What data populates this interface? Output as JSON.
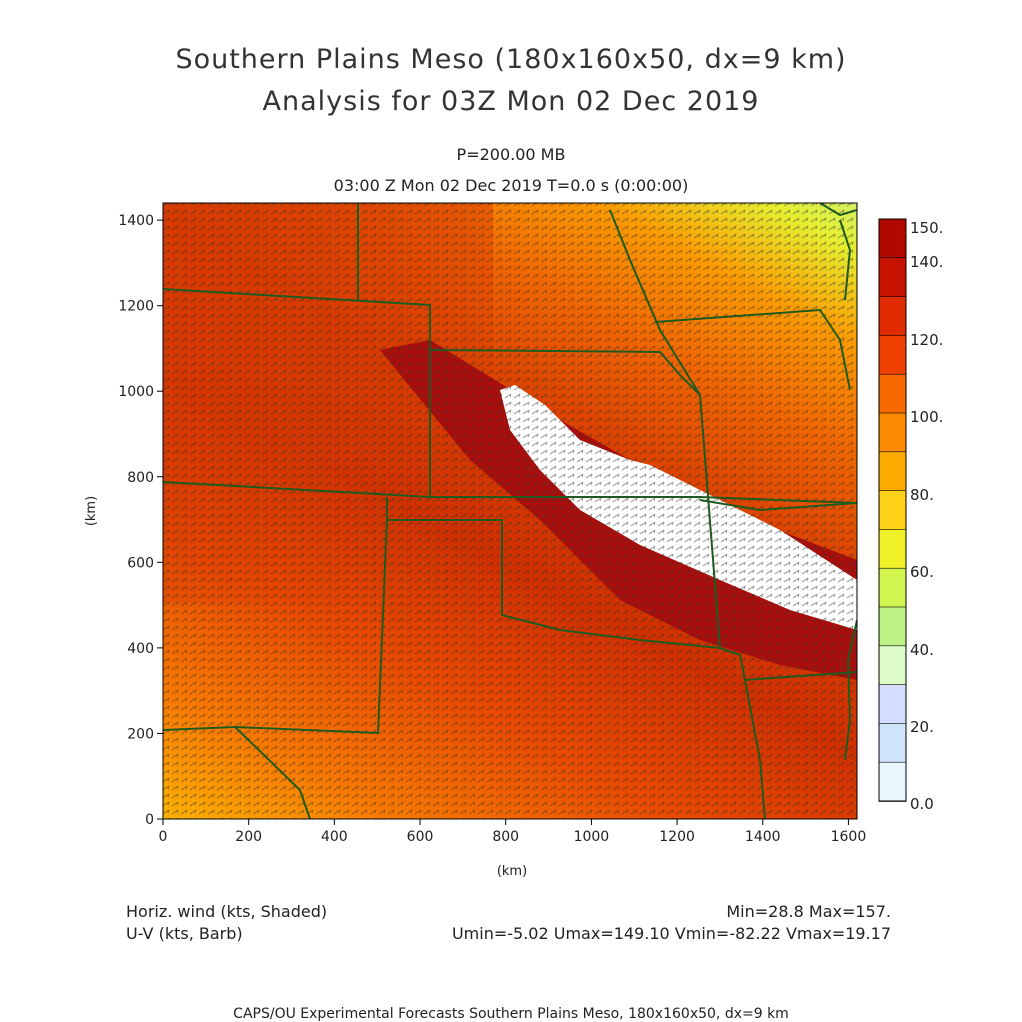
{
  "header": {
    "title_line1": "Southern Plains Meso (180x160x50, dx=9 km)",
    "title_line2": "Analysis for 03Z Mon 02 Dec 2019",
    "level": "P=200.00 MB",
    "time": "03:00 Z Mon 02 Dec 2019    T=0.0 s (0:00:00)"
  },
  "axes": {
    "x_label": "(km)",
    "y_label": "(km)",
    "x_ticks": [
      "0",
      "200",
      "400",
      "600",
      "800",
      "1000",
      "1200",
      "1400",
      "1600"
    ],
    "y_ticks": [
      "0",
      "200",
      "400",
      "600",
      "800",
      "1000",
      "1200",
      "1400"
    ],
    "x_range": [
      0,
      1620
    ],
    "y_range": [
      0,
      1440
    ]
  },
  "colorbar": {
    "labels": [
      "150.",
      "140.",
      "120.",
      "100.",
      "80.",
      "60.",
      "40.",
      "20.",
      "0.0"
    ],
    "colors": [
      "#b00a00",
      "#c81200",
      "#e02a00",
      "#f04000",
      "#f86a00",
      "#fb8b00",
      "#fcaa00",
      "#ffd21a",
      "#f0f028",
      "#d2f550",
      "#bdf286",
      "#ddfbc6",
      "#d4dcff",
      "#cfe6fa",
      "#e9f6fc"
    ]
  },
  "legend": {
    "left_line1": "Horiz. wind (kts, Shaded)",
    "left_line2": "U-V (kts, Barb)",
    "right_line1": "Min=28.8 Max=157.",
    "right_line2": "Umin=-5.02 Umax=149.10 Vmin=-82.22 Vmax=19.17"
  },
  "footer": "CAPS/OU Experimental Forecasts  Southern Plains Meso, 180x160x50, dx=9 km",
  "map_colors": {
    "jet_core": "#a80f0c",
    "above_max": "#ffffff",
    "borders": "#1f5a1f",
    "barbs": "#333333"
  }
}
